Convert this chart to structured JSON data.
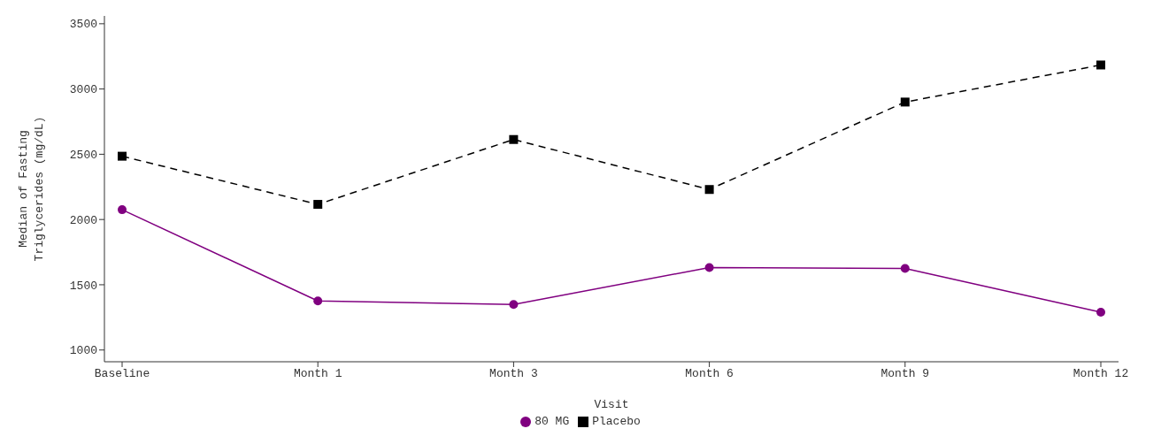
{
  "chart_data": {
    "type": "line",
    "xlabel": "Visit",
    "ylabel": "Median of Fasting Triglycerides (mg/dL)",
    "categories": [
      "Baseline",
      "Month 1",
      "Month 3",
      "Month 6",
      "Month 9",
      "Month 12"
    ],
    "ylim": [
      910,
      3560
    ],
    "yticks": [
      1000,
      1500,
      2000,
      2500,
      3000,
      3500
    ],
    "grid": false,
    "legend": "bottom",
    "series": [
      {
        "name": "Placebo",
        "color": "#000000",
        "marker": "square",
        "line_style": "dashed",
        "values": [
          2485,
          2116,
          2613,
          2230,
          2900,
          3184
        ]
      },
      {
        "name": "80 MG",
        "color": "#800080",
        "marker": "circle",
        "line_style": "solid",
        "values": [
          2075,
          1376,
          1349,
          1632,
          1625,
          1289
        ]
      }
    ]
  }
}
